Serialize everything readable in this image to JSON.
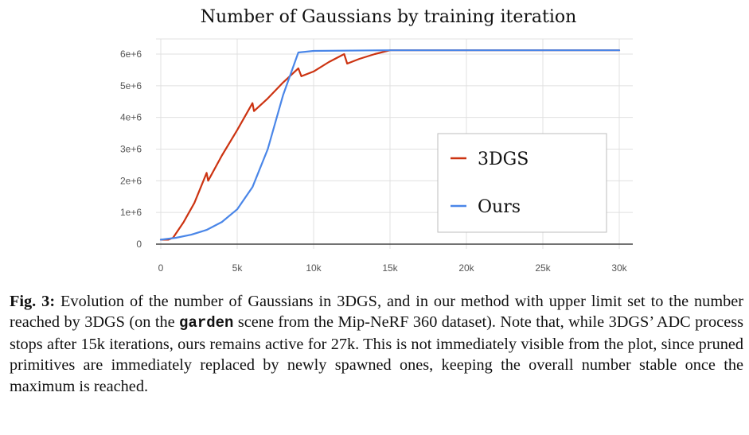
{
  "chart_data": {
    "type": "line",
    "title": "Number of Gaussians by training iteration",
    "xlabel": "",
    "ylabel": "",
    "xlim": [
      0,
      30000
    ],
    "ylim": [
      0,
      6000000
    ],
    "x_ticks": [
      {
        "value": 0,
        "label": "0"
      },
      {
        "value": 5000,
        "label": "5k"
      },
      {
        "value": 10000,
        "label": "10k"
      },
      {
        "value": 15000,
        "label": "15k"
      },
      {
        "value": 20000,
        "label": "20k"
      },
      {
        "value": 25000,
        "label": "25k"
      },
      {
        "value": 30000,
        "label": "30k"
      }
    ],
    "y_ticks": [
      {
        "value": 0,
        "label": "0"
      },
      {
        "value": 1000000,
        "label": "1e+6"
      },
      {
        "value": 2000000,
        "label": "2e+6"
      },
      {
        "value": 3000000,
        "label": "3e+6"
      },
      {
        "value": 4000000,
        "label": "4e+6"
      },
      {
        "value": 5000000,
        "label": "5e+6"
      },
      {
        "value": 6000000,
        "label": "6e+6"
      }
    ],
    "grid": true,
    "legend_position": "center-right",
    "series": [
      {
        "name": "3DGS",
        "color": "#cc3311",
        "points": [
          [
            0,
            140000
          ],
          [
            500,
            140000
          ],
          [
            800,
            200000
          ],
          [
            1500,
            700000
          ],
          [
            2200,
            1300000
          ],
          [
            3000,
            2250000
          ],
          [
            3100,
            2000000
          ],
          [
            4000,
            2800000
          ],
          [
            5000,
            3600000
          ],
          [
            6000,
            4450000
          ],
          [
            6100,
            4200000
          ],
          [
            7000,
            4600000
          ],
          [
            8000,
            5100000
          ],
          [
            9000,
            5550000
          ],
          [
            9200,
            5300000
          ],
          [
            10000,
            5450000
          ],
          [
            11000,
            5750000
          ],
          [
            12000,
            6000000
          ],
          [
            12200,
            5700000
          ],
          [
            13000,
            5850000
          ],
          [
            14000,
            6000000
          ],
          [
            15000,
            6120000
          ],
          [
            20000,
            6120000
          ],
          [
            25000,
            6120000
          ],
          [
            30000,
            6120000
          ]
        ]
      },
      {
        "name": "Ours",
        "color": "#4a86e8",
        "points": [
          [
            0,
            140000
          ],
          [
            1000,
            200000
          ],
          [
            2000,
            300000
          ],
          [
            3000,
            450000
          ],
          [
            4000,
            700000
          ],
          [
            5000,
            1100000
          ],
          [
            6000,
            1800000
          ],
          [
            7000,
            3000000
          ],
          [
            8000,
            4700000
          ],
          [
            9000,
            6050000
          ],
          [
            10000,
            6100000
          ],
          [
            15000,
            6120000
          ],
          [
            20000,
            6120000
          ],
          [
            25000,
            6120000
          ],
          [
            30000,
            6120000
          ]
        ]
      }
    ]
  },
  "caption": {
    "label": "Fig. 3:",
    "text_before": "Evolution of the number of Gaussians in 3DGS, and in our method with upper limit set to the number reached by 3DGS (on the",
    "code": "garden",
    "text_after": "scene from the Mip-NeRF 360 dataset). Note that, while 3DGS’ ADC process stops after 15k iterations, ours remains active for 27k. This is not immediately visible from the plot, since pruned primitives are immediately replaced by newly spawned ones, keeping the overall number stable once the maximum is reached."
  }
}
